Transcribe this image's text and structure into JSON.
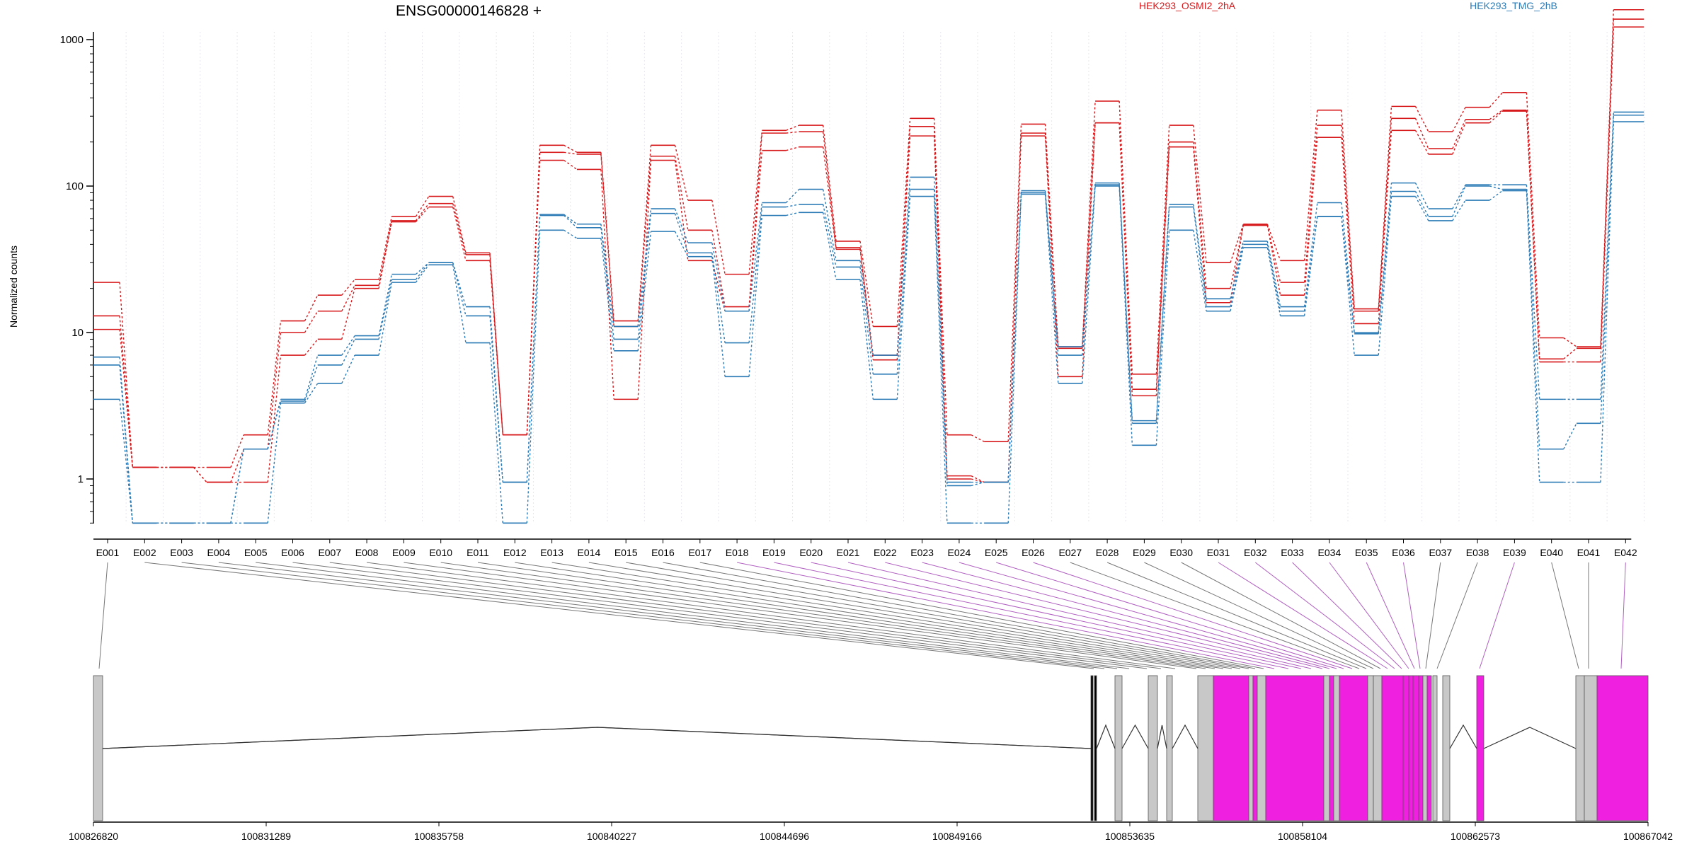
{
  "title": "ENSG00000146828 +",
  "legend": [
    {
      "label": "HEK293_OSMI2_2hA",
      "color": "#d7191c"
    },
    {
      "label": "HEK293_TMG_2hB",
      "color": "#2c7bb6"
    }
  ],
  "ylabel": "Normalized counts",
  "yticks": [
    "1",
    "10",
    "100",
    "1000"
  ],
  "genomic_ticks": [
    "100826820",
    "100831289",
    "100835758",
    "100840227",
    "100844696",
    "100849166",
    "100853635",
    "100858104",
    "100862573",
    "100867042"
  ],
  "chart_data": {
    "type": "line",
    "yscale": "log",
    "ylim": [
      0.5,
      2000
    ],
    "categories": [
      "E001",
      "E002",
      "E003",
      "E004",
      "E005",
      "E006",
      "E007",
      "E008",
      "E009",
      "E010",
      "E011",
      "E012",
      "E013",
      "E014",
      "E015",
      "E016",
      "E017",
      "E018",
      "E019",
      "E020",
      "E021",
      "E022",
      "E023",
      "E024",
      "E025",
      "E026",
      "E027",
      "E028",
      "E029",
      "E030",
      "E031",
      "E032",
      "E033",
      "E034",
      "E035",
      "E036",
      "E037",
      "E038",
      "E039",
      "E040",
      "E041",
      "E042"
    ],
    "series": [
      {
        "group": "HEK293_OSMI2_2hA",
        "color": "#d7191c",
        "values": [
          22,
          1.2,
          1.2,
          1.2,
          2,
          12,
          18,
          23,
          62,
          85,
          35,
          2,
          190,
          170,
          12,
          190,
          80,
          25,
          240,
          260,
          42,
          11,
          290,
          2,
          1.8,
          265,
          8,
          380,
          5.2,
          260,
          30,
          55,
          31,
          330,
          14.5,
          350,
          235,
          345,
          435,
          9.2,
          8,
          1600
        ]
      },
      {
        "group": "HEK293_OSMI2_2hA",
        "color": "#d7191c",
        "values": [
          13,
          1.2,
          1.2,
          0.95,
          1.6,
          10,
          14,
          21,
          58,
          76,
          34,
          2,
          170,
          165,
          11,
          160,
          50,
          15,
          230,
          235,
          38,
          7,
          255,
          1.05,
          0.95,
          230,
          7.8,
          270,
          4.1,
          200,
          20,
          54,
          22,
          260,
          14,
          290,
          180,
          285,
          330,
          6.6,
          7.8,
          1380
        ]
      },
      {
        "group": "HEK293_OSMI2_2hA",
        "color": "#d7191c",
        "values": [
          10.5,
          1.2,
          1.2,
          0.95,
          0.95,
          7,
          9,
          20,
          57,
          72,
          31,
          2,
          150,
          130,
          3.5,
          150,
          31,
          14,
          175,
          185,
          37,
          6.5,
          220,
          1,
          0.95,
          220,
          5,
          270,
          3.7,
          185,
          16,
          54,
          18,
          215,
          11.5,
          240,
          165,
          270,
          325,
          6.3,
          6.3,
          1220
        ]
      },
      {
        "group": "HEK293_TMG_2hB",
        "color": "#2c7bb6",
        "values": [
          6.8,
          0.5,
          0.5,
          0.5,
          1.6,
          3.5,
          7,
          9.5,
          25,
          30,
          15,
          0.95,
          64,
          55,
          11,
          70,
          41,
          14,
          77,
          95,
          31,
          7,
          115,
          0.95,
          0.95,
          93,
          8,
          105,
          2.5,
          75,
          17,
          42,
          15,
          77,
          10,
          105,
          70,
          102,
          102,
          3.5,
          3.5,
          320
        ]
      },
      {
        "group": "HEK293_TMG_2hB",
        "color": "#2c7bb6",
        "values": [
          6,
          0.5,
          0.5,
          0.5,
          1.6,
          3.4,
          6,
          9,
          23,
          30,
          13,
          0.95,
          63,
          52,
          9,
          65,
          35,
          8.5,
          72,
          75,
          28,
          5.2,
          95,
          0.9,
          0.95,
          90,
          7,
          102,
          2.4,
          72,
          15,
          40,
          14,
          62,
          9.8,
          92,
          62,
          100,
          95,
          1.6,
          2.4,
          305
        ]
      },
      {
        "group": "HEK293_TMG_2hB",
        "color": "#2c7bb6",
        "values": [
          3.5,
          0.5,
          0.5,
          0.5,
          0.5,
          3.3,
          4.5,
          7,
          22,
          29,
          8.5,
          0.5,
          50,
          44,
          7.5,
          49,
          33,
          5,
          63,
          66,
          23,
          3.5,
          85,
          0.5,
          0.5,
          88,
          4.5,
          100,
          1.7,
          50,
          14,
          38,
          13,
          62,
          7,
          85,
          58,
          80,
          93,
          0.95,
          0.95,
          275
        ]
      }
    ]
  }
}
